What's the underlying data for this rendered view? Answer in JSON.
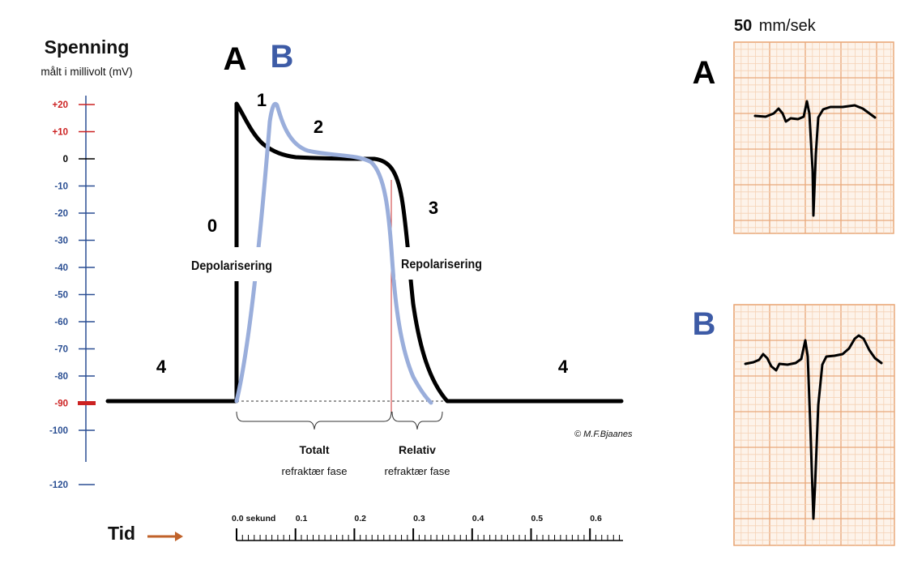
{
  "y_axis": {
    "title": "Spenning",
    "subtitle": "målt i millivolt (mV)",
    "ticks": [
      {
        "label": "+20",
        "mv": 20,
        "color": "#cc2222"
      },
      {
        "label": "+10",
        "mv": 10,
        "color": "#cc2222"
      },
      {
        "label": "0",
        "mv": 0,
        "color": "#000000"
      },
      {
        "label": "-10",
        "mv": -10,
        "color": "#2b4f93"
      },
      {
        "label": "-20",
        "mv": -20,
        "color": "#2b4f93"
      },
      {
        "label": "-30",
        "mv": -30,
        "color": "#2b4f93"
      },
      {
        "label": "-40",
        "mv": -40,
        "color": "#2b4f93"
      },
      {
        "label": "-50",
        "mv": -50,
        "color": "#2b4f93"
      },
      {
        "label": "-60",
        "mv": -60,
        "color": "#2b4f93"
      },
      {
        "label": "-70",
        "mv": -70,
        "color": "#2b4f93"
      },
      {
        "label": "-80",
        "mv": -80,
        "color": "#2b4f93"
      },
      {
        "label": "-90",
        "mv": -90,
        "color": "#cc2222"
      },
      {
        "label": "-100",
        "mv": -100,
        "color": "#2b4f93"
      },
      {
        "label": "-120",
        "mv": -120,
        "color": "#2b4f93"
      }
    ]
  },
  "curve_labels": {
    "a": "A",
    "b": "B"
  },
  "phases": {
    "p0": "0",
    "p1": "1",
    "p2": "2",
    "p3": "3",
    "p4_left": "4",
    "p4_right": "4"
  },
  "annotations": {
    "depolarisering": "Depolarisering",
    "repolarisering": "Repolarisering",
    "totalt": "Totalt",
    "totalt_sub": "refraktær fase",
    "relativ": "Relativ",
    "relativ_sub": "refraktær fase",
    "copyright": "© M.F.Bjaanes"
  },
  "time_axis": {
    "title": "Tid",
    "ticks": [
      {
        "label": "0.0 sekund",
        "t": 0.0
      },
      {
        "label": "0.1",
        "t": 0.1
      },
      {
        "label": "0.2",
        "t": 0.2
      },
      {
        "label": "0.3",
        "t": 0.3
      },
      {
        "label": "0.4",
        "t": 0.4
      },
      {
        "label": "0.5",
        "t": 0.5
      },
      {
        "label": "0.6",
        "t": 0.6
      }
    ]
  },
  "ecg": {
    "speed_value": "50",
    "speed_unit": "mm/sek",
    "label_a": "A",
    "label_b": "B"
  },
  "colors": {
    "curve_a": "#000000",
    "curve_b": "#9aaedb",
    "label_b": "#3d5ba6",
    "ecg_grid_minor": "#f5d2b5",
    "ecg_grid_major": "#e9a97a",
    "arrow": "#c0622a",
    "refractory_line": "#cc3333"
  }
}
